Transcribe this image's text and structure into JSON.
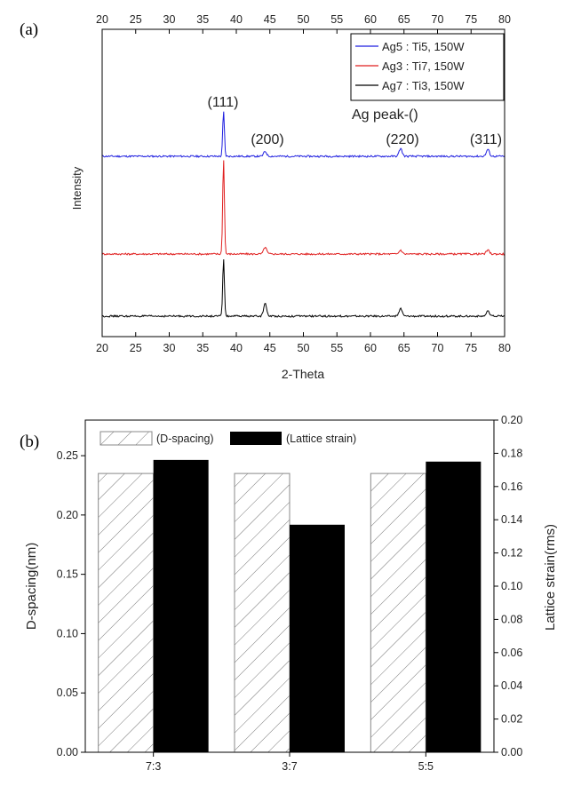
{
  "panels": {
    "a_label": "(a)",
    "b_label": "(b)"
  },
  "chart_data": [
    {
      "type": "line",
      "xlabel": "2-Theta",
      "ylabel": "Intensity",
      "xlim": [
        20,
        80
      ],
      "x_ticks": [
        "20",
        "25",
        "30",
        "35",
        "40",
        "45",
        "50",
        "55",
        "60",
        "65",
        "70",
        "75",
        "80"
      ],
      "annotation": "Ag peak-()",
      "peak_labels": [
        {
          "label": "(111)",
          "x": 38.1
        },
        {
          "label": "(200)",
          "x": 44.3
        },
        {
          "label": "(220)",
          "x": 64.5
        },
        {
          "label": "(311)",
          "x": 77.5
        }
      ],
      "legend_position": "top-right",
      "series": [
        {
          "name": "Ag5 : Ti5, 150W",
          "color": "#1f1fe0",
          "peaks": [
            {
              "x": 38.1,
              "height": 0.46
            },
            {
              "x": 44.3,
              "height": 0.05
            },
            {
              "x": 64.5,
              "height": 0.08
            },
            {
              "x": 77.5,
              "height": 0.07
            }
          ]
        },
        {
          "name": "Ag3 : Ti7, 150W",
          "color": "#e01f1f",
          "peaks": [
            {
              "x": 38.1,
              "height": 0.97
            },
            {
              "x": 44.3,
              "height": 0.07
            },
            {
              "x": 64.5,
              "height": 0.04
            },
            {
              "x": 77.5,
              "height": 0.04
            }
          ]
        },
        {
          "name": "Ag7 : Ti3, 150W",
          "color": "#000000",
          "peaks": [
            {
              "x": 38.1,
              "height": 0.59
            },
            {
              "x": 44.3,
              "height": 0.13
            },
            {
              "x": 64.5,
              "height": 0.08
            },
            {
              "x": 77.5,
              "height": 0.05
            }
          ]
        }
      ]
    },
    {
      "type": "bar",
      "categories": [
        "7:3",
        "3:7",
        "5:5"
      ],
      "ylabel": "D-spacing(nm)",
      "y2label": "Lattice strain(rms)",
      "ylim": [
        0,
        0.28
      ],
      "y2lim": [
        0,
        0.2
      ],
      "y_ticks": [
        "0.00",
        "0.05",
        "0.10",
        "0.15",
        "0.20",
        "0.25"
      ],
      "y2_ticks": [
        "0.00",
        "0.02",
        "0.04",
        "0.06",
        "0.08",
        "0.10",
        "0.12",
        "0.14",
        "0.16",
        "0.18",
        "0.20"
      ],
      "legend_position": "top-left",
      "series": [
        {
          "name": "(D-spacing)",
          "axis": "left",
          "style": "hatched",
          "values": [
            0.235,
            0.235,
            0.235
          ]
        },
        {
          "name": "(Lattice strain)",
          "axis": "right",
          "style": "solid",
          "color": "#000000",
          "values": [
            0.176,
            0.137,
            0.175
          ]
        }
      ]
    }
  ]
}
